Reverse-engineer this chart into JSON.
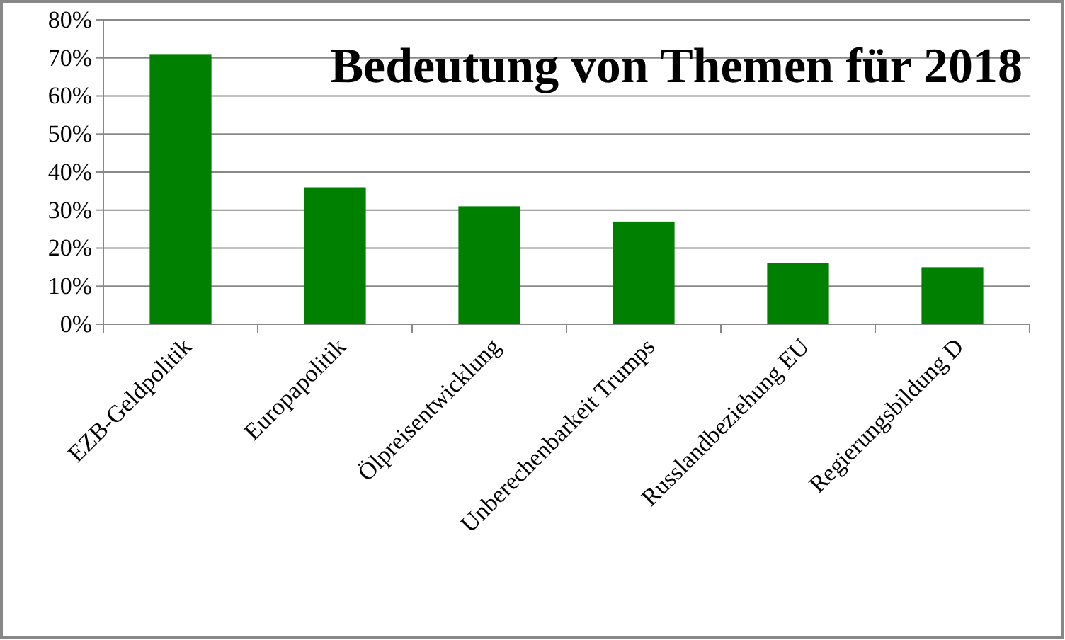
{
  "chart_data": {
    "type": "bar",
    "title": "Bedeutung von Themen für 2018",
    "categories": [
      "EZB-Geldpolitik",
      "Europapolitik",
      "Ölpreisentwicklung",
      "Unberechenbarkeit Trumps",
      "Russlandbeziehung EU",
      "Regierungsbildung  D"
    ],
    "values": [
      71,
      36,
      31,
      27,
      16,
      15
    ],
    "color": "#008000",
    "ylim": [
      0,
      80
    ],
    "yticks": [
      {
        "value": 0,
        "label": "0%"
      },
      {
        "value": 10,
        "label": "10%"
      },
      {
        "value": 20,
        "label": "20%"
      },
      {
        "value": 30,
        "label": "30%"
      },
      {
        "value": 40,
        "label": "40%"
      },
      {
        "value": 50,
        "label": "50%"
      },
      {
        "value": 60,
        "label": "60%"
      },
      {
        "value": 70,
        "label": "70%"
      },
      {
        "value": 80,
        "label": "80%"
      }
    ],
    "grid": "y"
  }
}
